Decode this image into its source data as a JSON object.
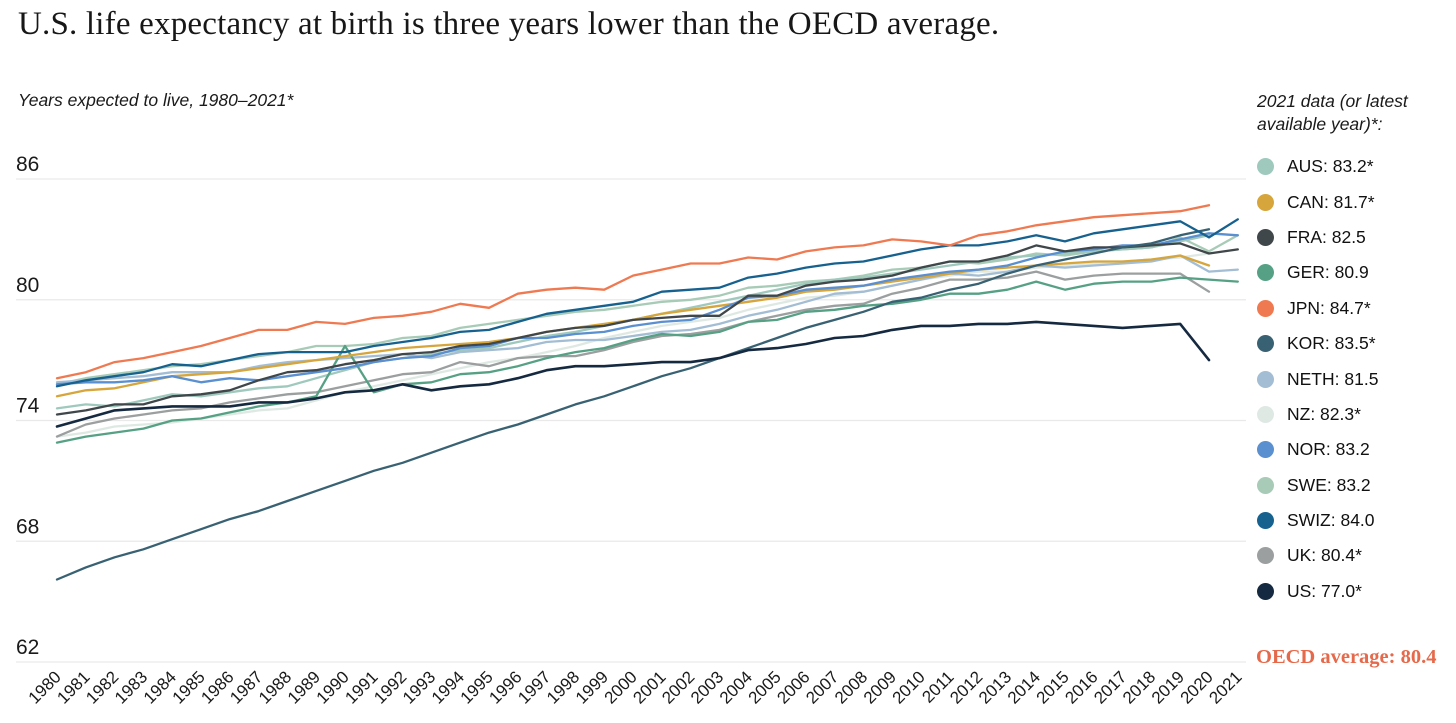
{
  "header": {
    "title": "U.S. life expectancy at birth is three years lower than the OECD average.",
    "subtitle": "Years expected to live, 1980–2021*"
  },
  "legend": {
    "heading": "2021 data (or latest available year)*:",
    "note": "OECD average: 80.4"
  },
  "colors": {
    "grid": "#e9e9e9",
    "axis_text": "#1a1a1a",
    "note_accent": "#e5694a"
  },
  "chart_data": {
    "type": "line",
    "title": "U.S. life expectancy at birth is three years lower than the OECD average.",
    "subtitle": "Years expected to live, 1980–2021*",
    "legend_title": "2021 data (or latest available year)*:",
    "note": "OECD average: 80.4",
    "oecd_average": 80.4,
    "xlabel": "",
    "ylabel": "Years expected to live",
    "ylim": [
      62,
      86
    ],
    "yticks": [
      86,
      80,
      74,
      68,
      62
    ],
    "grid": "horizontal",
    "legend_position": "right",
    "start_year": 1980,
    "years": [
      1980,
      1981,
      1982,
      1983,
      1984,
      1985,
      1986,
      1987,
      1988,
      1989,
      1990,
      1991,
      1992,
      1993,
      1994,
      1995,
      1996,
      1997,
      1998,
      1999,
      2000,
      2001,
      2002,
      2003,
      2004,
      2005,
      2006,
      2007,
      2008,
      2009,
      2010,
      2011,
      2012,
      2013,
      2014,
      2015,
      2016,
      2017,
      2018,
      2019,
      2020,
      2021
    ],
    "draw_order": [
      "NZ",
      "SWE",
      "AUS",
      "NETH",
      "UK",
      "GER",
      "CAN",
      "NOR",
      "FRA",
      "KOR",
      "SWIZ",
      "JPN",
      "US"
    ],
    "series": [
      {
        "name": "AUS",
        "legend": "AUS: 83.2*",
        "latest": 83.2,
        "color": "#9fc9bd",
        "values": [
          74.6,
          74.8,
          74.7,
          75.0,
          75.3,
          75.2,
          75.4,
          75.6,
          75.7,
          76.1,
          76.5,
          76.9,
          77.1,
          77.3,
          77.5,
          77.6,
          77.9,
          78.2,
          78.4,
          78.7,
          79.0,
          79.3,
          79.6,
          79.9,
          80.2,
          80.5,
          80.8,
          81.0,
          81.1,
          81.3,
          81.5,
          81.7,
          81.9,
          82.1,
          82.2,
          82.3,
          82.4,
          82.5,
          82.6,
          82.9,
          83.2
        ]
      },
      {
        "name": "CAN",
        "legend": "CAN: 81.7*",
        "latest": 81.7,
        "color": "#d6a63d",
        "values": [
          75.2,
          75.5,
          75.6,
          75.9,
          76.2,
          76.3,
          76.4,
          76.6,
          76.8,
          77.0,
          77.2,
          77.4,
          77.6,
          77.7,
          77.8,
          77.9,
          78.1,
          78.4,
          78.6,
          78.8,
          79.0,
          79.3,
          79.5,
          79.7,
          79.9,
          80.1,
          80.4,
          80.5,
          80.7,
          80.9,
          81.1,
          81.3,
          81.5,
          81.6,
          81.7,
          81.8,
          81.9,
          81.9,
          82.0,
          82.2,
          81.7
        ]
      },
      {
        "name": "FRA",
        "legend": "FRA: 82.5",
        "latest": 82.5,
        "color": "#40474a",
        "values": [
          74.3,
          74.5,
          74.8,
          74.8,
          75.2,
          75.3,
          75.5,
          76.0,
          76.4,
          76.5,
          76.8,
          77.0,
          77.3,
          77.4,
          77.7,
          77.8,
          78.1,
          78.4,
          78.6,
          78.7,
          79.0,
          79.1,
          79.2,
          79.2,
          80.2,
          80.2,
          80.7,
          80.9,
          81.0,
          81.2,
          81.6,
          81.9,
          81.9,
          82.2,
          82.7,
          82.4,
          82.6,
          82.6,
          82.7,
          82.8,
          82.3,
          82.5
        ]
      },
      {
        "name": "GER",
        "legend": "GER: 80.9",
        "latest": 80.9,
        "color": "#56a185",
        "values": [
          72.9,
          73.2,
          73.4,
          73.6,
          74.0,
          74.1,
          74.4,
          74.7,
          74.9,
          75.2,
          77.7,
          75.4,
          75.8,
          75.9,
          76.3,
          76.4,
          76.7,
          77.1,
          77.4,
          77.6,
          78.0,
          78.3,
          78.2,
          78.4,
          78.9,
          79.0,
          79.4,
          79.5,
          79.7,
          79.8,
          80.0,
          80.3,
          80.3,
          80.5,
          80.9,
          80.5,
          80.8,
          80.9,
          80.9,
          81.1,
          81.0,
          80.9
        ]
      },
      {
        "name": "JPN",
        "legend": "JPN: 84.7*",
        "latest": 84.7,
        "color": "#ef7a52",
        "values": [
          76.1,
          76.4,
          76.9,
          77.1,
          77.4,
          77.7,
          78.1,
          78.5,
          78.5,
          78.9,
          78.8,
          79.1,
          79.2,
          79.4,
          79.8,
          79.6,
          80.3,
          80.5,
          80.6,
          80.5,
          81.2,
          81.5,
          81.8,
          81.8,
          82.1,
          82.0,
          82.4,
          82.6,
          82.7,
          83.0,
          82.9,
          82.7,
          83.2,
          83.4,
          83.7,
          83.9,
          84.1,
          84.2,
          84.3,
          84.4,
          84.7
        ]
      },
      {
        "name": "KOR",
        "legend": "KOR: 83.5*",
        "latest": 83.5,
        "color": "#386273",
        "values": [
          66.1,
          66.7,
          67.2,
          67.6,
          68.1,
          68.6,
          69.1,
          69.5,
          70.0,
          70.5,
          71.0,
          71.5,
          71.9,
          72.4,
          72.9,
          73.4,
          73.8,
          74.3,
          74.8,
          75.2,
          75.7,
          76.2,
          76.6,
          77.1,
          77.6,
          78.1,
          78.6,
          79.0,
          79.4,
          79.9,
          80.1,
          80.5,
          80.8,
          81.3,
          81.7,
          82.0,
          82.3,
          82.6,
          82.8,
          83.2,
          83.5
        ]
      },
      {
        "name": "NETH",
        "legend": "NETH: 81.5",
        "latest": 81.5,
        "color": "#a3bdd4",
        "values": [
          75.9,
          76.0,
          76.1,
          76.2,
          76.4,
          76.4,
          76.4,
          76.7,
          76.9,
          77.0,
          77.1,
          77.2,
          77.3,
          77.1,
          77.4,
          77.5,
          77.6,
          77.9,
          78.0,
          78.0,
          78.2,
          78.4,
          78.5,
          78.8,
          79.2,
          79.5,
          79.9,
          80.3,
          80.4,
          80.7,
          81.0,
          81.3,
          81.2,
          81.4,
          81.7,
          81.6,
          81.7,
          81.8,
          81.9,
          82.2,
          81.4,
          81.5
        ]
      },
      {
        "name": "NZ",
        "legend": "NZ: 82.3*",
        "latest": 82.3,
        "color": "#dfe9e4",
        "values": [
          73.2,
          73.4,
          73.7,
          73.8,
          73.9,
          74.1,
          74.3,
          74.5,
          74.6,
          75.0,
          75.4,
          75.7,
          76.0,
          76.3,
          76.6,
          76.9,
          77.1,
          77.4,
          77.7,
          78.1,
          78.4,
          78.7,
          78.9,
          79.1,
          79.5,
          79.8,
          80.1,
          80.2,
          80.4,
          80.7,
          81.0,
          81.2,
          81.4,
          81.4,
          81.6,
          81.7,
          81.8,
          81.9,
          82.0,
          82.1,
          82.3
        ]
      },
      {
        "name": "NOR",
        "legend": "NOR: 83.2",
        "latest": 83.2,
        "color": "#5a8fd0",
        "values": [
          75.8,
          75.9,
          75.9,
          76.0,
          76.2,
          75.9,
          76.1,
          76.0,
          76.2,
          76.4,
          76.6,
          76.9,
          77.1,
          77.2,
          77.6,
          77.7,
          78.1,
          78.1,
          78.3,
          78.4,
          78.7,
          78.9,
          79.0,
          79.5,
          80.1,
          80.2,
          80.5,
          80.6,
          80.7,
          81.0,
          81.2,
          81.4,
          81.5,
          81.7,
          82.1,
          82.4,
          82.5,
          82.7,
          82.7,
          83.0,
          83.3,
          83.2
        ]
      },
      {
        "name": "SWE",
        "legend": "SWE: 83.2",
        "latest": 83.2,
        "color": "#a7cbb6",
        "values": [
          75.8,
          76.1,
          76.3,
          76.5,
          76.7,
          76.8,
          77.0,
          77.2,
          77.4,
          77.7,
          77.7,
          77.8,
          78.1,
          78.2,
          78.6,
          78.8,
          79.0,
          79.2,
          79.4,
          79.5,
          79.7,
          79.9,
          80.0,
          80.2,
          80.6,
          80.7,
          80.9,
          81.0,
          81.2,
          81.5,
          81.6,
          81.9,
          81.8,
          82.0,
          82.3,
          82.2,
          82.4,
          82.5,
          82.6,
          83.1,
          82.4,
          83.2
        ]
      },
      {
        "name": "SWIZ",
        "legend": "SWIZ: 84.0",
        "latest": 84.0,
        "color": "#17618f",
        "values": [
          75.7,
          76.0,
          76.2,
          76.4,
          76.8,
          76.7,
          77.0,
          77.3,
          77.4,
          77.4,
          77.4,
          77.7,
          77.9,
          78.1,
          78.4,
          78.5,
          78.9,
          79.3,
          79.5,
          79.7,
          79.9,
          80.4,
          80.5,
          80.6,
          81.1,
          81.3,
          81.6,
          81.8,
          81.9,
          82.2,
          82.5,
          82.7,
          82.7,
          82.9,
          83.2,
          82.9,
          83.3,
          83.5,
          83.7,
          83.9,
          83.1,
          84.0
        ]
      },
      {
        "name": "UK",
        "legend": "UK: 80.4*",
        "latest": 80.4,
        "color": "#9b9f9f",
        "values": [
          73.2,
          73.8,
          74.1,
          74.3,
          74.5,
          74.6,
          74.9,
          75.1,
          75.3,
          75.4,
          75.7,
          76.0,
          76.3,
          76.4,
          76.9,
          76.7,
          77.1,
          77.2,
          77.2,
          77.5,
          77.9,
          78.2,
          78.3,
          78.5,
          78.9,
          79.2,
          79.5,
          79.7,
          79.8,
          80.3,
          80.6,
          81.0,
          81.0,
          81.1,
          81.4,
          81.0,
          81.2,
          81.3,
          81.3,
          81.3,
          80.4
        ]
      },
      {
        "name": "US",
        "legend": "US: 77.0*",
        "latest": 77.0,
        "color": "#152940",
        "values": [
          73.7,
          74.1,
          74.5,
          74.6,
          74.7,
          74.7,
          74.7,
          74.9,
          74.9,
          75.1,
          75.4,
          75.5,
          75.8,
          75.5,
          75.7,
          75.8,
          76.1,
          76.5,
          76.7,
          76.7,
          76.8,
          76.9,
          76.9,
          77.1,
          77.5,
          77.6,
          77.8,
          78.1,
          78.2,
          78.5,
          78.7,
          78.7,
          78.8,
          78.8,
          78.9,
          78.8,
          78.7,
          78.6,
          78.7,
          78.8,
          77.0
        ]
      }
    ]
  }
}
